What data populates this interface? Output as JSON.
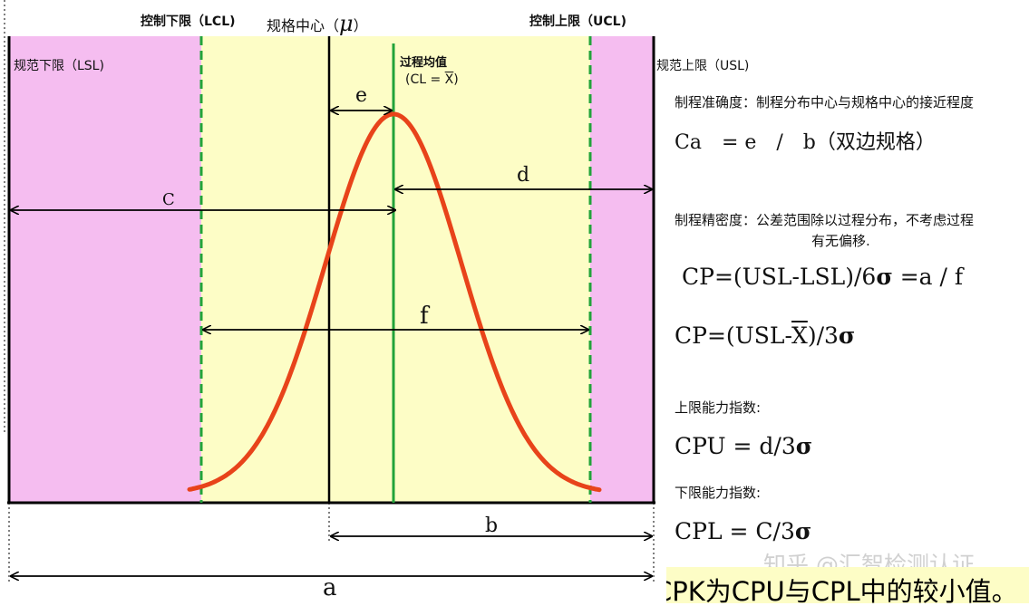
{
  "labels": {
    "lcl": "控制下限（LCL)",
    "spec_center": "规格中心（",
    "mu": "μ",
    "spec_center_close": "）",
    "ucl": "控制上限（UCL)",
    "lsl": "规范下限（LSL)",
    "usl": "规范上限（USL)",
    "process_mean": "过程均值",
    "cl_prefix": "(CL = ",
    "cl_xbar": "X",
    "cl_suffix": ")"
  },
  "dimensions": {
    "e": "e",
    "d": "d",
    "c": "C",
    "f": "f",
    "b": "b",
    "a": "a"
  },
  "text_panel": {
    "ca_heading": "制程准确度：制程分布中心与规格中心的接近程度",
    "ca_formula": "Ca　= e　/　b（双边规格）",
    "cp_heading": "制程精密度：公差范围除以过程分布，不考虑过程",
    "cp_heading_line2": "有无偏移.",
    "cp_formula1_prefix": "CP=(USL-LSL)/6",
    "cp_formula1_sigma": "σ",
    "cp_formula1_suffix": " =a / f",
    "cp_formula2_prefix": "CP=(USL-",
    "cp_formula2_xbar": "X",
    "cp_formula2_mid": ")/3",
    "cp_formula2_sigma": "σ",
    "cpu_heading": "上限能力指数:",
    "cpu_prefix": "CPU = d/3",
    "cpu_sigma": "σ",
    "cpl_heading": "下限能力指数:",
    "cpl_prefix": "CPL = C/3",
    "cpl_sigma": "σ",
    "cpk_note": "CPK为CPU与CPL中的较小值。",
    "watermark": "知乎 @汇智检测认证"
  },
  "colors": {
    "spec_out_zone": "#f5bdf0",
    "control_zone": "#fdfdc6",
    "curve": "#e8431a",
    "control_limit_line": "#22a33a",
    "process_mean_line": "#22a33a",
    "axis": "#000000"
  }
}
